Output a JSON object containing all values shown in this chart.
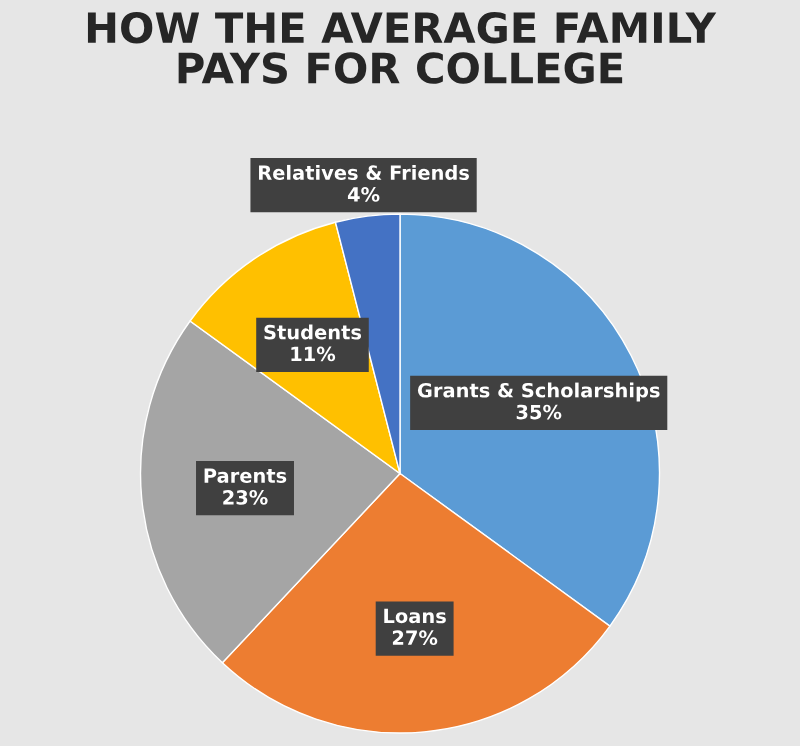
{
  "chart_data": {
    "type": "pie",
    "title": "HOW THE AVERAGE FAMILY\nPAYS FOR COLLEGE",
    "categories": [
      "Grants & Scholarships",
      "Loans",
      "Parents",
      "Students",
      "Relatives & Friends"
    ],
    "values": [
      35,
      27,
      23,
      11,
      4
    ],
    "colors": [
      "#5b9bd5",
      "#ed7d31",
      "#a5a5a5",
      "#ffc000",
      "#4472c4"
    ],
    "value_labels": [
      "35%",
      "27%",
      "23%",
      "11%",
      "4%"
    ]
  }
}
